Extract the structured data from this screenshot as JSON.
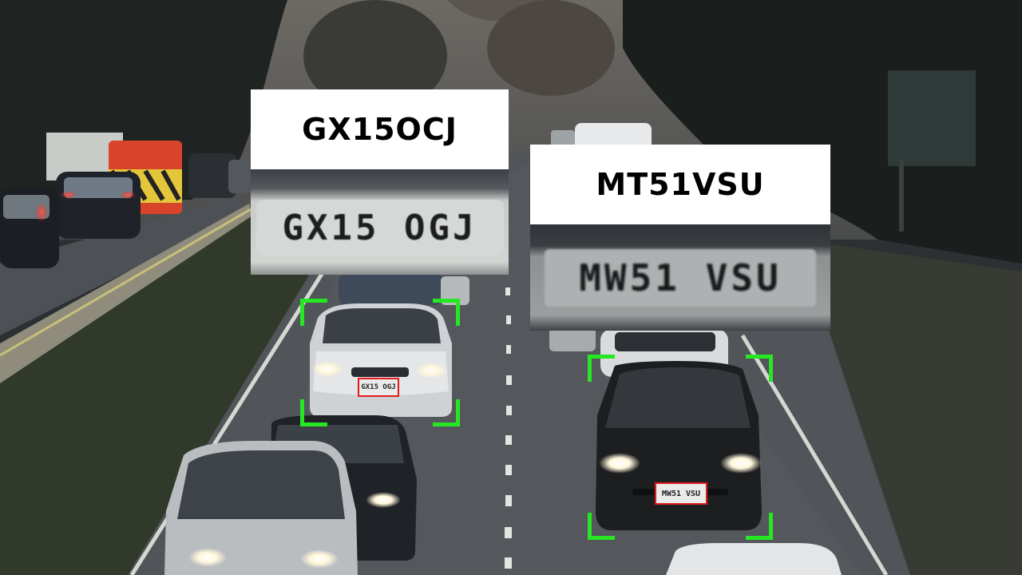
{
  "colors": {
    "detection_box": "#27e624",
    "plate_box": "#e41b1b",
    "label_background": "#ffffff",
    "label_text": "#000000"
  },
  "detections": [
    {
      "recognized_text": "GX15OCJ",
      "plate_crop_text": "GX15 OGJ",
      "on_car_text": "GX15 OGJ"
    },
    {
      "recognized_text": "MT51VSU",
      "plate_crop_text": "MW51 VSU",
      "on_car_text": "MW51 VSU"
    }
  ]
}
